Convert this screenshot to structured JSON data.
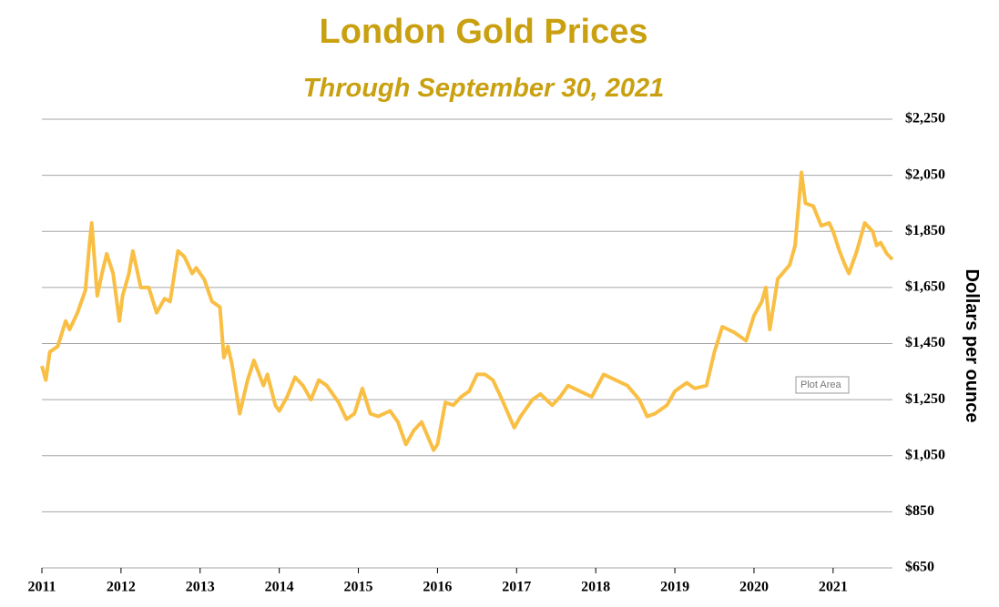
{
  "chart_data": {
    "type": "line",
    "title": "London Gold Prices",
    "subtitle": "Through September 30, 2021",
    "y_axis_label": "Dollars per ounce",
    "annotation": "Plot Area",
    "xlim": [
      2011,
      2021.75
    ],
    "xticks": [
      2011,
      2012,
      2013,
      2014,
      2015,
      2016,
      2017,
      2018,
      2019,
      2020,
      2021
    ],
    "ylim": [
      650,
      2250
    ],
    "yticks": [
      {
        "value": 650,
        "label": "$650"
      },
      {
        "value": 850,
        "label": "$850"
      },
      {
        "value": 1050,
        "label": "$1,050"
      },
      {
        "value": 1250,
        "label": "$1,250"
      },
      {
        "value": 1450,
        "label": "$1,450"
      },
      {
        "value": 1650,
        "label": "$1,650"
      },
      {
        "value": 1850,
        "label": "$1,850"
      },
      {
        "value": 2050,
        "label": "$2,050"
      },
      {
        "value": 2250,
        "label": "$2,250"
      }
    ],
    "grid": true,
    "x": [
      2011.0,
      2011.05,
      2011.1,
      2011.2,
      2011.3,
      2011.35,
      2011.45,
      2011.55,
      2011.6,
      2011.63,
      2011.7,
      2011.76,
      2011.82,
      2011.9,
      2011.98,
      2012.02,
      2012.1,
      2012.15,
      2012.25,
      2012.35,
      2012.45,
      2012.55,
      2012.62,
      2012.72,
      2012.8,
      2012.9,
      2012.95,
      2013.05,
      2013.15,
      2013.25,
      2013.3,
      2013.35,
      2013.4,
      2013.5,
      2013.6,
      2013.68,
      2013.8,
      2013.85,
      2013.95,
      2014.0,
      2014.1,
      2014.2,
      2014.3,
      2014.4,
      2014.5,
      2014.6,
      2014.75,
      2014.85,
      2014.95,
      2015.05,
      2015.15,
      2015.25,
      2015.4,
      2015.5,
      2015.6,
      2015.7,
      2015.8,
      2015.95,
      2016.0,
      2016.1,
      2016.2,
      2016.3,
      2016.4,
      2016.5,
      2016.6,
      2016.7,
      2016.8,
      2016.97,
      2017.05,
      2017.2,
      2017.3,
      2017.45,
      2017.55,
      2017.65,
      2017.8,
      2017.95,
      2018.1,
      2018.25,
      2018.4,
      2018.55,
      2018.65,
      2018.75,
      2018.9,
      2019.0,
      2019.15,
      2019.25,
      2019.4,
      2019.5,
      2019.6,
      2019.75,
      2019.9,
      2020.0,
      2020.1,
      2020.15,
      2020.2,
      2020.3,
      2020.45,
      2020.52,
      2020.6,
      2020.65,
      2020.75,
      2020.85,
      2020.95,
      2021.0,
      2021.08,
      2021.15,
      2021.2,
      2021.3,
      2021.4,
      2021.5,
      2021.55,
      2021.6,
      2021.68,
      2021.75
    ],
    "series": [
      {
        "name": "London Gold Price",
        "color": "#f9bf45",
        "values": [
          1370,
          1320,
          1420,
          1440,
          1530,
          1500,
          1560,
          1640,
          1800,
          1880,
          1620,
          1700,
          1770,
          1700,
          1530,
          1620,
          1700,
          1780,
          1650,
          1650,
          1560,
          1610,
          1600,
          1780,
          1760,
          1700,
          1720,
          1680,
          1600,
          1580,
          1400,
          1440,
          1380,
          1200,
          1320,
          1390,
          1300,
          1340,
          1230,
          1210,
          1260,
          1330,
          1300,
          1250,
          1320,
          1300,
          1240,
          1180,
          1200,
          1290,
          1200,
          1190,
          1210,
          1170,
          1090,
          1140,
          1170,
          1070,
          1090,
          1240,
          1230,
          1260,
          1280,
          1340,
          1340,
          1320,
          1260,
          1150,
          1190,
          1250,
          1270,
          1230,
          1260,
          1300,
          1280,
          1260,
          1340,
          1320,
          1300,
          1250,
          1190,
          1200,
          1230,
          1280,
          1310,
          1290,
          1300,
          1420,
          1510,
          1490,
          1460,
          1550,
          1600,
          1650,
          1500,
          1680,
          1730,
          1800,
          2060,
          1950,
          1940,
          1870,
          1880,
          1850,
          1780,
          1730,
          1700,
          1780,
          1880,
          1850,
          1800,
          1810,
          1770,
          1750
        ]
      }
    ]
  }
}
